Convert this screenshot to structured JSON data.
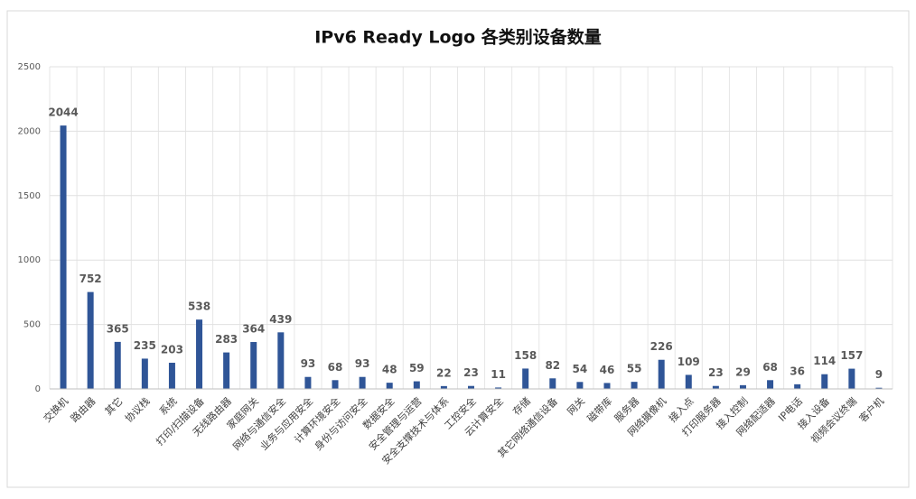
{
  "chart_data": {
    "type": "bar",
    "title": "IPv6 Ready Logo 各类别设备数量",
    "categories": [
      "交换机",
      "路由器",
      "其它",
      "协议栈",
      "系统",
      "打印/扫描设备",
      "无线路由器",
      "家庭网关",
      "网络与通信安全",
      "业务与应用安全",
      "计算环境安全",
      "身份与访问安全",
      "数据安全",
      "安全管理与运营",
      "安全支撑技术与体系",
      "工控安全",
      "云计算安全",
      "存储",
      "其它网络通信设备",
      "网关",
      "磁带库",
      "服务器",
      "网络摄像机",
      "接入点",
      "打印服务器",
      "接入控制",
      "网络配适器",
      "IP电话",
      "接入设备",
      "视频会议终端",
      "客户机"
    ],
    "values": [
      2044,
      752,
      365,
      235,
      203,
      538,
      283,
      364,
      439,
      93,
      68,
      93,
      48,
      59,
      22,
      23,
      11,
      158,
      82,
      54,
      46,
      55,
      226,
      109,
      23,
      29,
      68,
      36,
      114,
      157,
      9
    ],
    "color": "#2f5597",
    "ylim": [
      0,
      2500
    ],
    "yticks": [
      0,
      500,
      1000,
      1500,
      2000,
      2500
    ],
    "grid": true
  }
}
